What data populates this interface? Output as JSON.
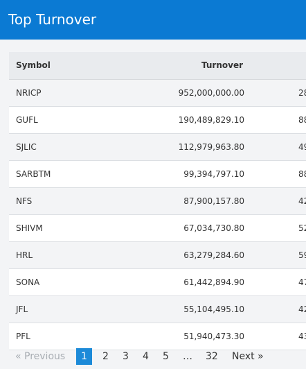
{
  "header": {
    "title": "Top Turnover"
  },
  "table": {
    "columns": [
      "Symbol",
      "Turnover",
      ""
    ],
    "rows": [
      {
        "symbol": "NRICP",
        "turnover": "952,000,000.00",
        "extra": "28"
      },
      {
        "symbol": "GUFL",
        "turnover": "190,489,829.10",
        "extra": "88"
      },
      {
        "symbol": "SJLIC",
        "turnover": "112,979,963.80",
        "extra": "49"
      },
      {
        "symbol": "SARBTM",
        "turnover": "99,394,797.10",
        "extra": "88"
      },
      {
        "symbol": "NFS",
        "turnover": "87,900,157.80",
        "extra": "42"
      },
      {
        "symbol": "SHIVM",
        "turnover": "67,034,730.80",
        "extra": "52"
      },
      {
        "symbol": "HRL",
        "turnover": "63,279,284.60",
        "extra": "59"
      },
      {
        "symbol": "SONA",
        "turnover": "61,442,894.90",
        "extra": "47"
      },
      {
        "symbol": "JFL",
        "turnover": "55,104,495.10",
        "extra": "42"
      },
      {
        "symbol": "PFL",
        "turnover": "51,940,473.30",
        "extra": "43"
      }
    ]
  },
  "pagination": {
    "prev_label": "« Previous",
    "pages": [
      "1",
      "2",
      "3",
      "4",
      "5"
    ],
    "ellipsis": "…",
    "last_page": "32",
    "next_label": "Next »",
    "current": "1"
  }
}
